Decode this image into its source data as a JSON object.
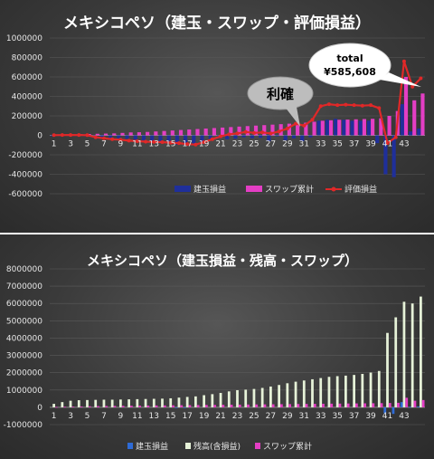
{
  "chart_data": [
    {
      "type": "bar",
      "title": "メキシコペソ（建玉・スワップ・評価損益）",
      "x": [
        1,
        2,
        3,
        4,
        5,
        6,
        7,
        8,
        9,
        10,
        11,
        12,
        13,
        14,
        15,
        16,
        17,
        18,
        19,
        20,
        21,
        22,
        23,
        24,
        25,
        26,
        27,
        28,
        29,
        30,
        31,
        32,
        33,
        34,
        35,
        36,
        37,
        38,
        39,
        40,
        41,
        42,
        43,
        44,
        45
      ],
      "xtick_labels": [
        "1",
        "3",
        "5",
        "7",
        "9",
        "11",
        "13",
        "15",
        "17",
        "19",
        "21",
        "23",
        "25",
        "27",
        "29",
        "31",
        "33",
        "35",
        "37",
        "39",
        "41",
        "43"
      ],
      "ylim": [
        -600000,
        1000000
      ],
      "yticks": [
        "1000000",
        "800000",
        "600000",
        "400000",
        "200000",
        "0",
        "-200000",
        "-400000",
        "-600000"
      ],
      "series": [
        {
          "name": "建玉損益",
          "type": "bar",
          "color": "#1f2f9a",
          "values": [
            -5000,
            -8000,
            -6000,
            -7000,
            -9000,
            -12000,
            -20000,
            -25000,
            -30000,
            -35000,
            -45000,
            -50000,
            -55000,
            -60000,
            -80000,
            -95000,
            -100000,
            -90000,
            -70000,
            -40000,
            -30000,
            -40000,
            -35000,
            -20000,
            -30000,
            -25000,
            -60000,
            -10000,
            -50000,
            -30000,
            -60000,
            -20000,
            150000,
            160000,
            170000,
            160000,
            150000,
            150000,
            150000,
            -80000,
            -400000,
            -430000,
            320000,
            40000,
            70000
          ]
        },
        {
          "name": "スワップ累計",
          "type": "bar",
          "color": "#e43ec4",
          "values": [
            5000,
            8000,
            10000,
            12000,
            14000,
            16000,
            18000,
            20000,
            25000,
            30000,
            32000,
            35000,
            40000,
            45000,
            50000,
            55000,
            60000,
            65000,
            70000,
            75000,
            80000,
            85000,
            90000,
            95000,
            100000,
            105000,
            110000,
            115000,
            120000,
            125000,
            130000,
            140000,
            150000,
            155000,
            160000,
            162000,
            165000,
            168000,
            170000,
            175000,
            200000,
            250000,
            600000,
            360000,
            430000
          ]
        },
        {
          "name": "評価損益",
          "type": "line",
          "color": "#e02828",
          "values": [
            2000,
            3000,
            4000,
            3000,
            2000,
            -20000,
            -30000,
            -40000,
            -45000,
            -55000,
            -60000,
            -65000,
            -68000,
            -70000,
            -75000,
            -80000,
            -90000,
            -95000,
            -70000,
            -40000,
            -10000,
            10000,
            20000,
            35000,
            25000,
            30000,
            20000,
            40000,
            70000,
            120000,
            100000,
            160000,
            300000,
            320000,
            310000,
            315000,
            310000,
            305000,
            310000,
            280000,
            -80000,
            -20000,
            760000,
            500000,
            585608
          ]
        }
      ],
      "annotations": [
        {
          "text": "利確",
          "target_x": 29
        },
        {
          "line1": "total",
          "line2": "¥585,608",
          "target_x": 45
        }
      ]
    },
    {
      "type": "bar",
      "title": "メキシコペソ（建玉損益・残高・スワップ）",
      "x": [
        1,
        2,
        3,
        4,
        5,
        6,
        7,
        8,
        9,
        10,
        11,
        12,
        13,
        14,
        15,
        16,
        17,
        18,
        19,
        20,
        21,
        22,
        23,
        24,
        25,
        26,
        27,
        28,
        29,
        30,
        31,
        32,
        33,
        34,
        35,
        36,
        37,
        38,
        39,
        40,
        41,
        42,
        43,
        44,
        45
      ],
      "xtick_labels": [
        "1",
        "3",
        "5",
        "7",
        "9",
        "11",
        "13",
        "15",
        "17",
        "19",
        "21",
        "23",
        "25",
        "27",
        "29",
        "31",
        "33",
        "35",
        "37",
        "39",
        "41",
        "43"
      ],
      "ylim": [
        -1000000,
        8000000
      ],
      "yticks": [
        "8000000",
        "7000000",
        "6000000",
        "5000000",
        "4000000",
        "3000000",
        "2000000",
        "1000000",
        "0",
        "-1000000"
      ],
      "series": [
        {
          "name": "建玉損益",
          "type": "bar",
          "color": "#2e6bd6",
          "values": [
            0,
            0,
            0,
            0,
            0,
            0,
            0,
            0,
            0,
            0,
            0,
            0,
            0,
            0,
            0,
            -20000,
            -20000,
            0,
            0,
            0,
            0,
            0,
            0,
            0,
            0,
            0,
            0,
            0,
            0,
            0,
            0,
            0,
            0,
            0,
            0,
            0,
            0,
            0,
            0,
            0,
            -350000,
            -380000,
            300000,
            30000,
            50000
          ]
        },
        {
          "name": "残高(含損益)",
          "type": "bar",
          "color": "#e6f2d8",
          "values": [
            200000,
            300000,
            380000,
            410000,
            420000,
            430000,
            440000,
            440000,
            450000,
            460000,
            470000,
            480000,
            490000,
            500000,
            520000,
            560000,
            600000,
            630000,
            700000,
            760000,
            830000,
            920000,
            990000,
            1020000,
            1060000,
            1120000,
            1200000,
            1290000,
            1390000,
            1480000,
            1550000,
            1620000,
            1690000,
            1760000,
            1800000,
            1830000,
            1870000,
            1930000,
            2010000,
            2100000,
            4300000,
            5200000,
            6100000,
            6000000,
            6400000
          ]
        },
        {
          "name": "スワップ累計",
          "type": "bar",
          "color": "#e43ec4",
          "values": [
            20000,
            30000,
            40000,
            50000,
            60000,
            70000,
            75000,
            80000,
            85000,
            90000,
            95000,
            100000,
            105000,
            110000,
            115000,
            120000,
            125000,
            130000,
            135000,
            140000,
            145000,
            150000,
            155000,
            160000,
            165000,
            170000,
            175000,
            180000,
            185000,
            190000,
            195000,
            200000,
            205000,
            210000,
            215000,
            220000,
            225000,
            230000,
            235000,
            240000,
            250000,
            260000,
            550000,
            380000,
            420000
          ]
        }
      ]
    }
  ]
}
